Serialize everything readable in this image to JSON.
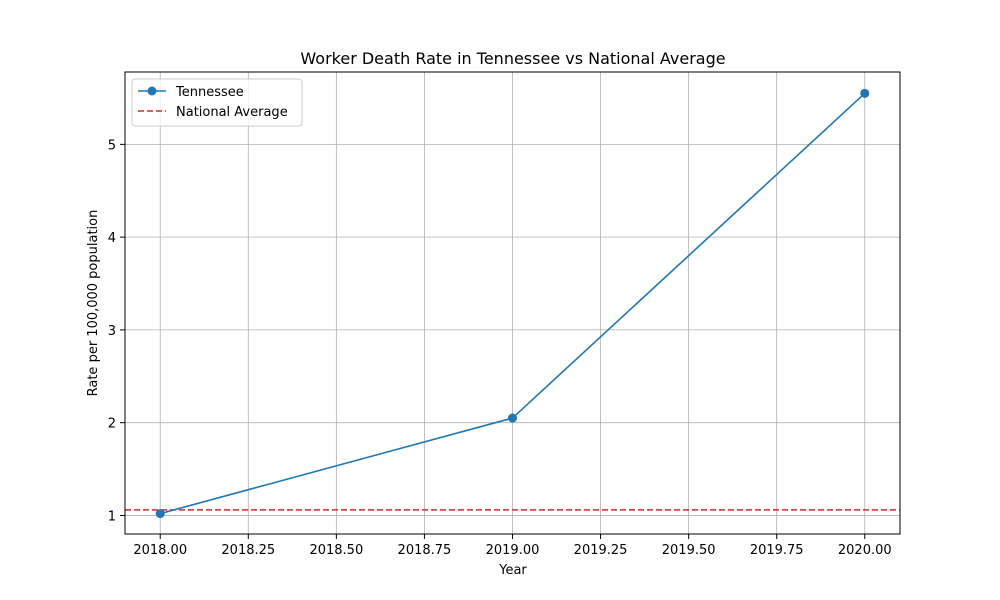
{
  "chart_data": {
    "type": "line",
    "title": "Worker Death Rate in Tennessee vs National Average",
    "xlabel": "Year",
    "ylabel": "Rate per 100,000 population",
    "xlim": [
      2017.9,
      2020.1
    ],
    "ylim": [
      0.8,
      5.78
    ],
    "xticks": [
      2018.0,
      2018.25,
      2018.5,
      2018.75,
      2019.0,
      2019.25,
      2019.5,
      2019.75,
      2020.0
    ],
    "xtick_labels": [
      "2018.00",
      "2018.25",
      "2018.50",
      "2018.75",
      "2019.00",
      "2019.25",
      "2019.50",
      "2019.75",
      "2020.00"
    ],
    "yticks": [
      1,
      2,
      3,
      4,
      5
    ],
    "ytick_labels": [
      "1",
      "2",
      "3",
      "4",
      "5"
    ],
    "grid": true,
    "legend_position": "top-left",
    "series": [
      {
        "name": "Tennessee",
        "x": [
          2018,
          2019,
          2020
        ],
        "values": [
          1.02,
          2.05,
          5.55
        ],
        "color": "#1f77b4",
        "style": "solid",
        "marker": "circle"
      }
    ],
    "reference_lines": [
      {
        "name": "National Average",
        "y": 1.06,
        "color": "#d62728",
        "style": "dashed"
      }
    ]
  }
}
